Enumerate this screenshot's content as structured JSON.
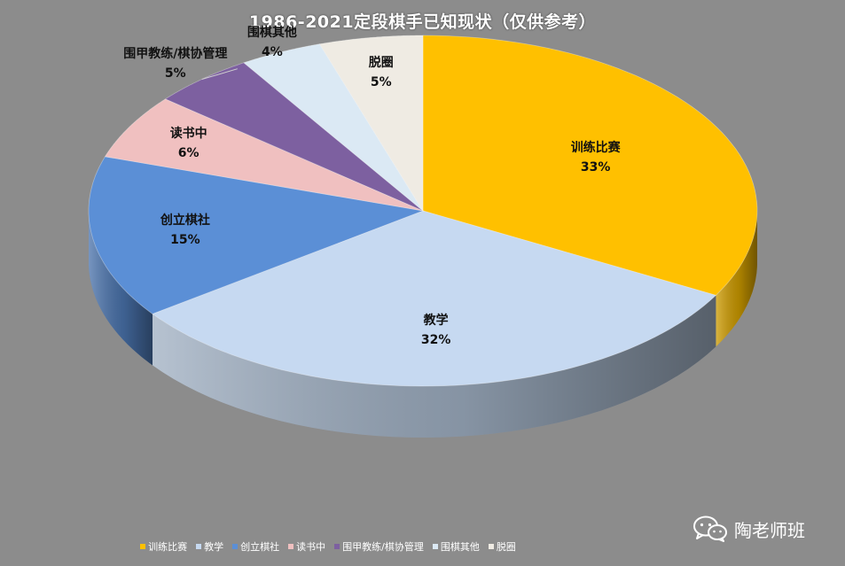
{
  "chart_data": {
    "type": "pie",
    "title": "1986-2021定段棋手已知现状（仅供参考）",
    "categories": [
      "训练比赛",
      "教学",
      "创立棋社",
      "读书中",
      "围甲教练/棋协管理",
      "围棋其他",
      "脱圈"
    ],
    "values": [
      33,
      32,
      15,
      6,
      5,
      4,
      5
    ],
    "labels": [
      "33%",
      "32%",
      "15%",
      "6%",
      "5%",
      "4%",
      "5%"
    ],
    "colors": [
      "#ffc000",
      "#c6d9f1",
      "#5b8fd6",
      "#f0c0c0",
      "#7d60a0",
      "#dbe9f4",
      "#efebe3"
    ],
    "legend_position": "bottom",
    "style": "3d-pie"
  },
  "watermark": {
    "icon": "wechat-icon",
    "text": "陶老师班"
  }
}
